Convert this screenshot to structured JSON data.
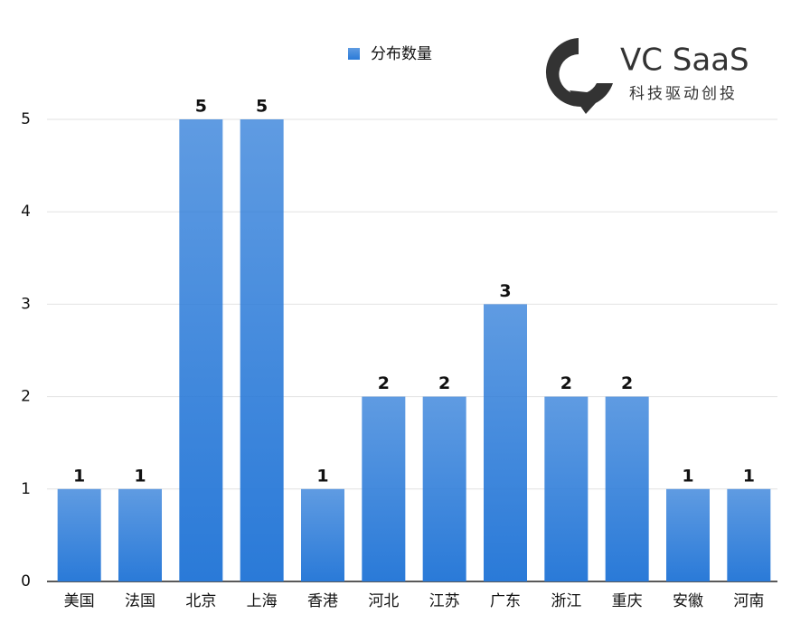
{
  "chart_data": {
    "type": "bar",
    "categories": [
      "美国",
      "法国",
      "北京",
      "上海",
      "香港",
      "河北",
      "江苏",
      "广东",
      "浙江",
      "重庆",
      "安徽",
      "河南"
    ],
    "series": [
      {
        "name": "分布数量",
        "color": "#2a7ad8",
        "values": [
          1,
          1,
          5,
          5,
          1,
          2,
          2,
          3,
          2,
          2,
          1,
          1
        ]
      }
    ],
    "ylim": [
      0,
      5
    ],
    "yticks": [
      0,
      1,
      2,
      3,
      4,
      5
    ],
    "grid": true,
    "legend": "top"
  },
  "logo": {
    "title": "VC SaaS",
    "subtitle": "科技驱动创投"
  }
}
